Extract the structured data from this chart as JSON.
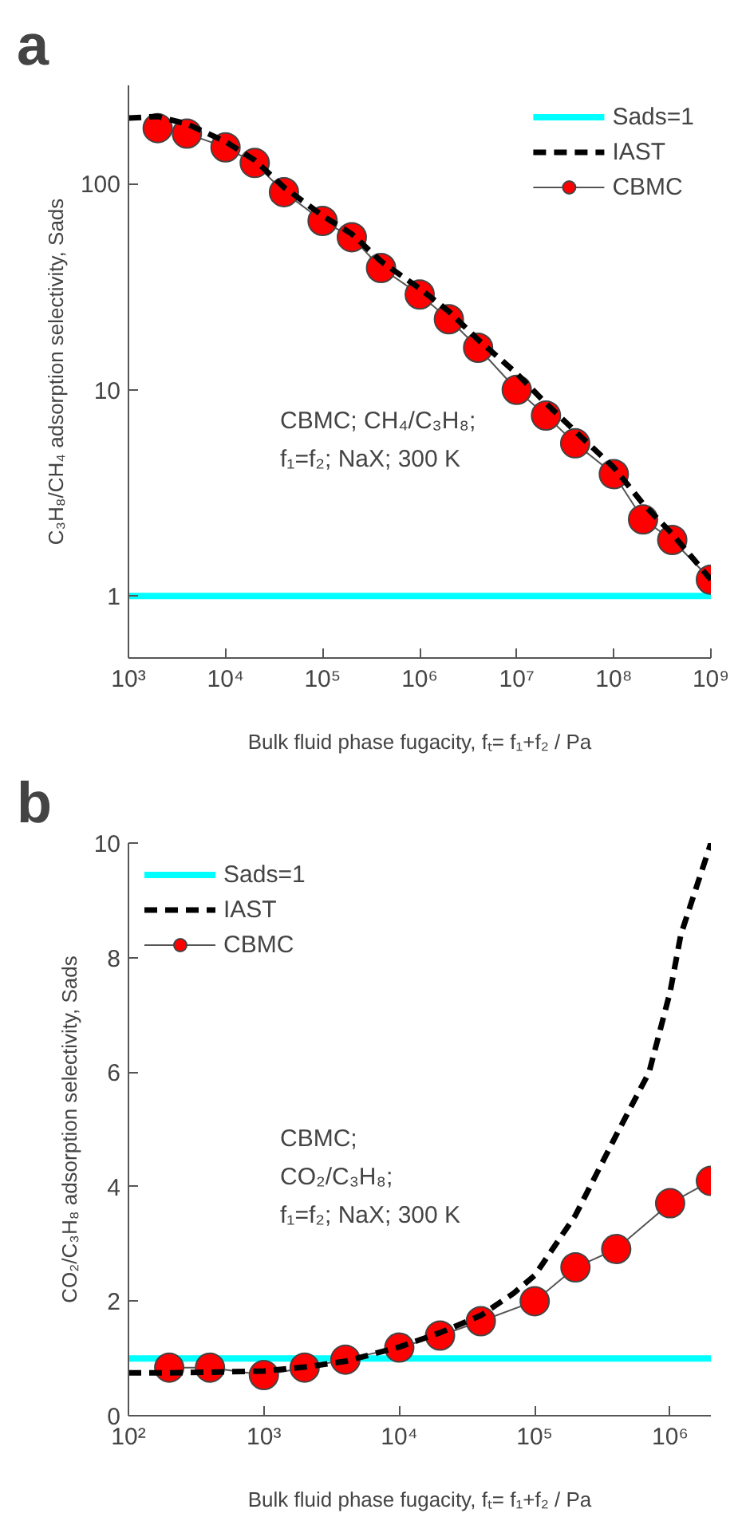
{
  "chart_data": [
    {
      "type": "line",
      "title": "a",
      "xlabel": "Bulk fluid phase fugacity, fₜ= f₁+f₂ / Pa",
      "ylabel": "C₃H₈/CH₄ adsorption selectivity, Sads",
      "log": "xy",
      "grid": false,
      "legend": "top right",
      "xlim": [
        1000,
        1000000000
      ],
      "ylim": [
        0.5,
        300
      ],
      "xticks": [
        {
          "value": 1000,
          "label": "10³"
        },
        {
          "value": 10000,
          "label": "10⁴"
        },
        {
          "value": 100000,
          "label": "10⁵"
        },
        {
          "value": 1000000,
          "label": "10⁶"
        },
        {
          "value": 10000000,
          "label": "10⁷"
        },
        {
          "value": 100000000,
          "label": "10⁸"
        },
        {
          "value": 1000000000,
          "label": "10⁹"
        }
      ],
      "yticks": [
        1,
        10,
        100
      ],
      "series": [
        {
          "name": "IAST",
          "color": "#000000",
          "line_style": "dashed",
          "marker": "none",
          "x": [
            1000,
            2000,
            4000,
            10000,
            20000,
            40000,
            100000,
            200000,
            400000,
            1000000,
            2000000,
            4000000,
            10000000,
            20000000,
            40000000,
            100000000,
            200000000,
            400000000,
            1000000000
          ],
          "values": [
            208,
            212,
            195,
            160,
            130,
            96,
            70,
            57,
            42,
            31,
            24,
            17.5,
            12,
            8.6,
            6.3,
            4.2,
            2.8,
            2.0,
            1.2
          ]
        },
        {
          "name": "CBMC",
          "color": "#ff0000",
          "line_style": "solid",
          "marker": "circle",
          "x": [
            2000,
            4000,
            10000,
            20000,
            40000,
            100000,
            200000,
            400000,
            1000000,
            2000000,
            4000000,
            10000000,
            20000000,
            40000000,
            100000000,
            200000000,
            400000000,
            1000000000
          ],
          "values": [
            186,
            175,
            150,
            126,
            91,
            66,
            55,
            39,
            29,
            22,
            16,
            10,
            7.5,
            5.5,
            3.9,
            2.35,
            1.87,
            1.2
          ]
        }
      ],
      "ref_lines": [
        {
          "axis": "y",
          "value": 1,
          "label": "Sads=1",
          "color": "#00ffff"
        }
      ],
      "annotations": [
        "CBMC; CH₄/C₃H₈;",
        "f₁=f₂; NaX; 300 K"
      ]
    },
    {
      "type": "line",
      "title": "b",
      "xlabel": "Bulk fluid phase fugacity, fₜ= f₁+f₂ / Pa",
      "ylabel": "CO₂/C₃H₈ adsorption selectivity, Sads",
      "log": "x",
      "grid": false,
      "legend": "top left",
      "xlim": [
        100,
        2000000
      ],
      "ylim": [
        0,
        10
      ],
      "xticks": [
        {
          "value": 100,
          "label": "10²"
        },
        {
          "value": 1000,
          "label": "10³"
        },
        {
          "value": 10000,
          "label": "10⁴"
        },
        {
          "value": 100000,
          "label": "10⁵"
        },
        {
          "value": 1000000,
          "label": "10⁶"
        }
      ],
      "yticks": [
        0,
        2,
        4,
        6,
        8,
        10
      ],
      "ref_lines": [
        {
          "axis": "y",
          "value": 1,
          "label": "Sads=1",
          "color": "#00ffff"
        }
      ],
      "series": [
        {
          "name": "IAST",
          "color": "#000000",
          "line_style": "dashed",
          "marker": "none",
          "x": [
            100,
            200,
            400,
            1000,
            2000,
            4000,
            10000,
            20000,
            40000,
            70000,
            100000,
            200000,
            400000,
            700000,
            1000000,
            1200000,
            2000000
          ],
          "values": [
            0.75,
            0.75,
            0.76,
            0.78,
            0.85,
            0.95,
            1.2,
            1.45,
            1.75,
            2.14,
            2.45,
            3.5,
            4.9,
            6.0,
            7.4,
            8.4,
            10.0
          ]
        },
        {
          "name": "CBMC",
          "color": "#ff0000",
          "line_style": "solid",
          "marker": "circle",
          "x": [
            200,
            400,
            1000,
            2000,
            4000,
            10000,
            20000,
            40000,
            100000,
            200000,
            400000,
            1000000,
            2000000
          ],
          "values": [
            0.84,
            0.84,
            0.71,
            0.84,
            0.98,
            1.19,
            1.4,
            1.65,
            2.0,
            2.59,
            2.91,
            3.71,
            4.1
          ]
        }
      ],
      "annotations": [
        "CBMC;",
        "CO₂/C₃H₈;",
        "f₁=f₂; NaX; 300 K"
      ]
    }
  ]
}
